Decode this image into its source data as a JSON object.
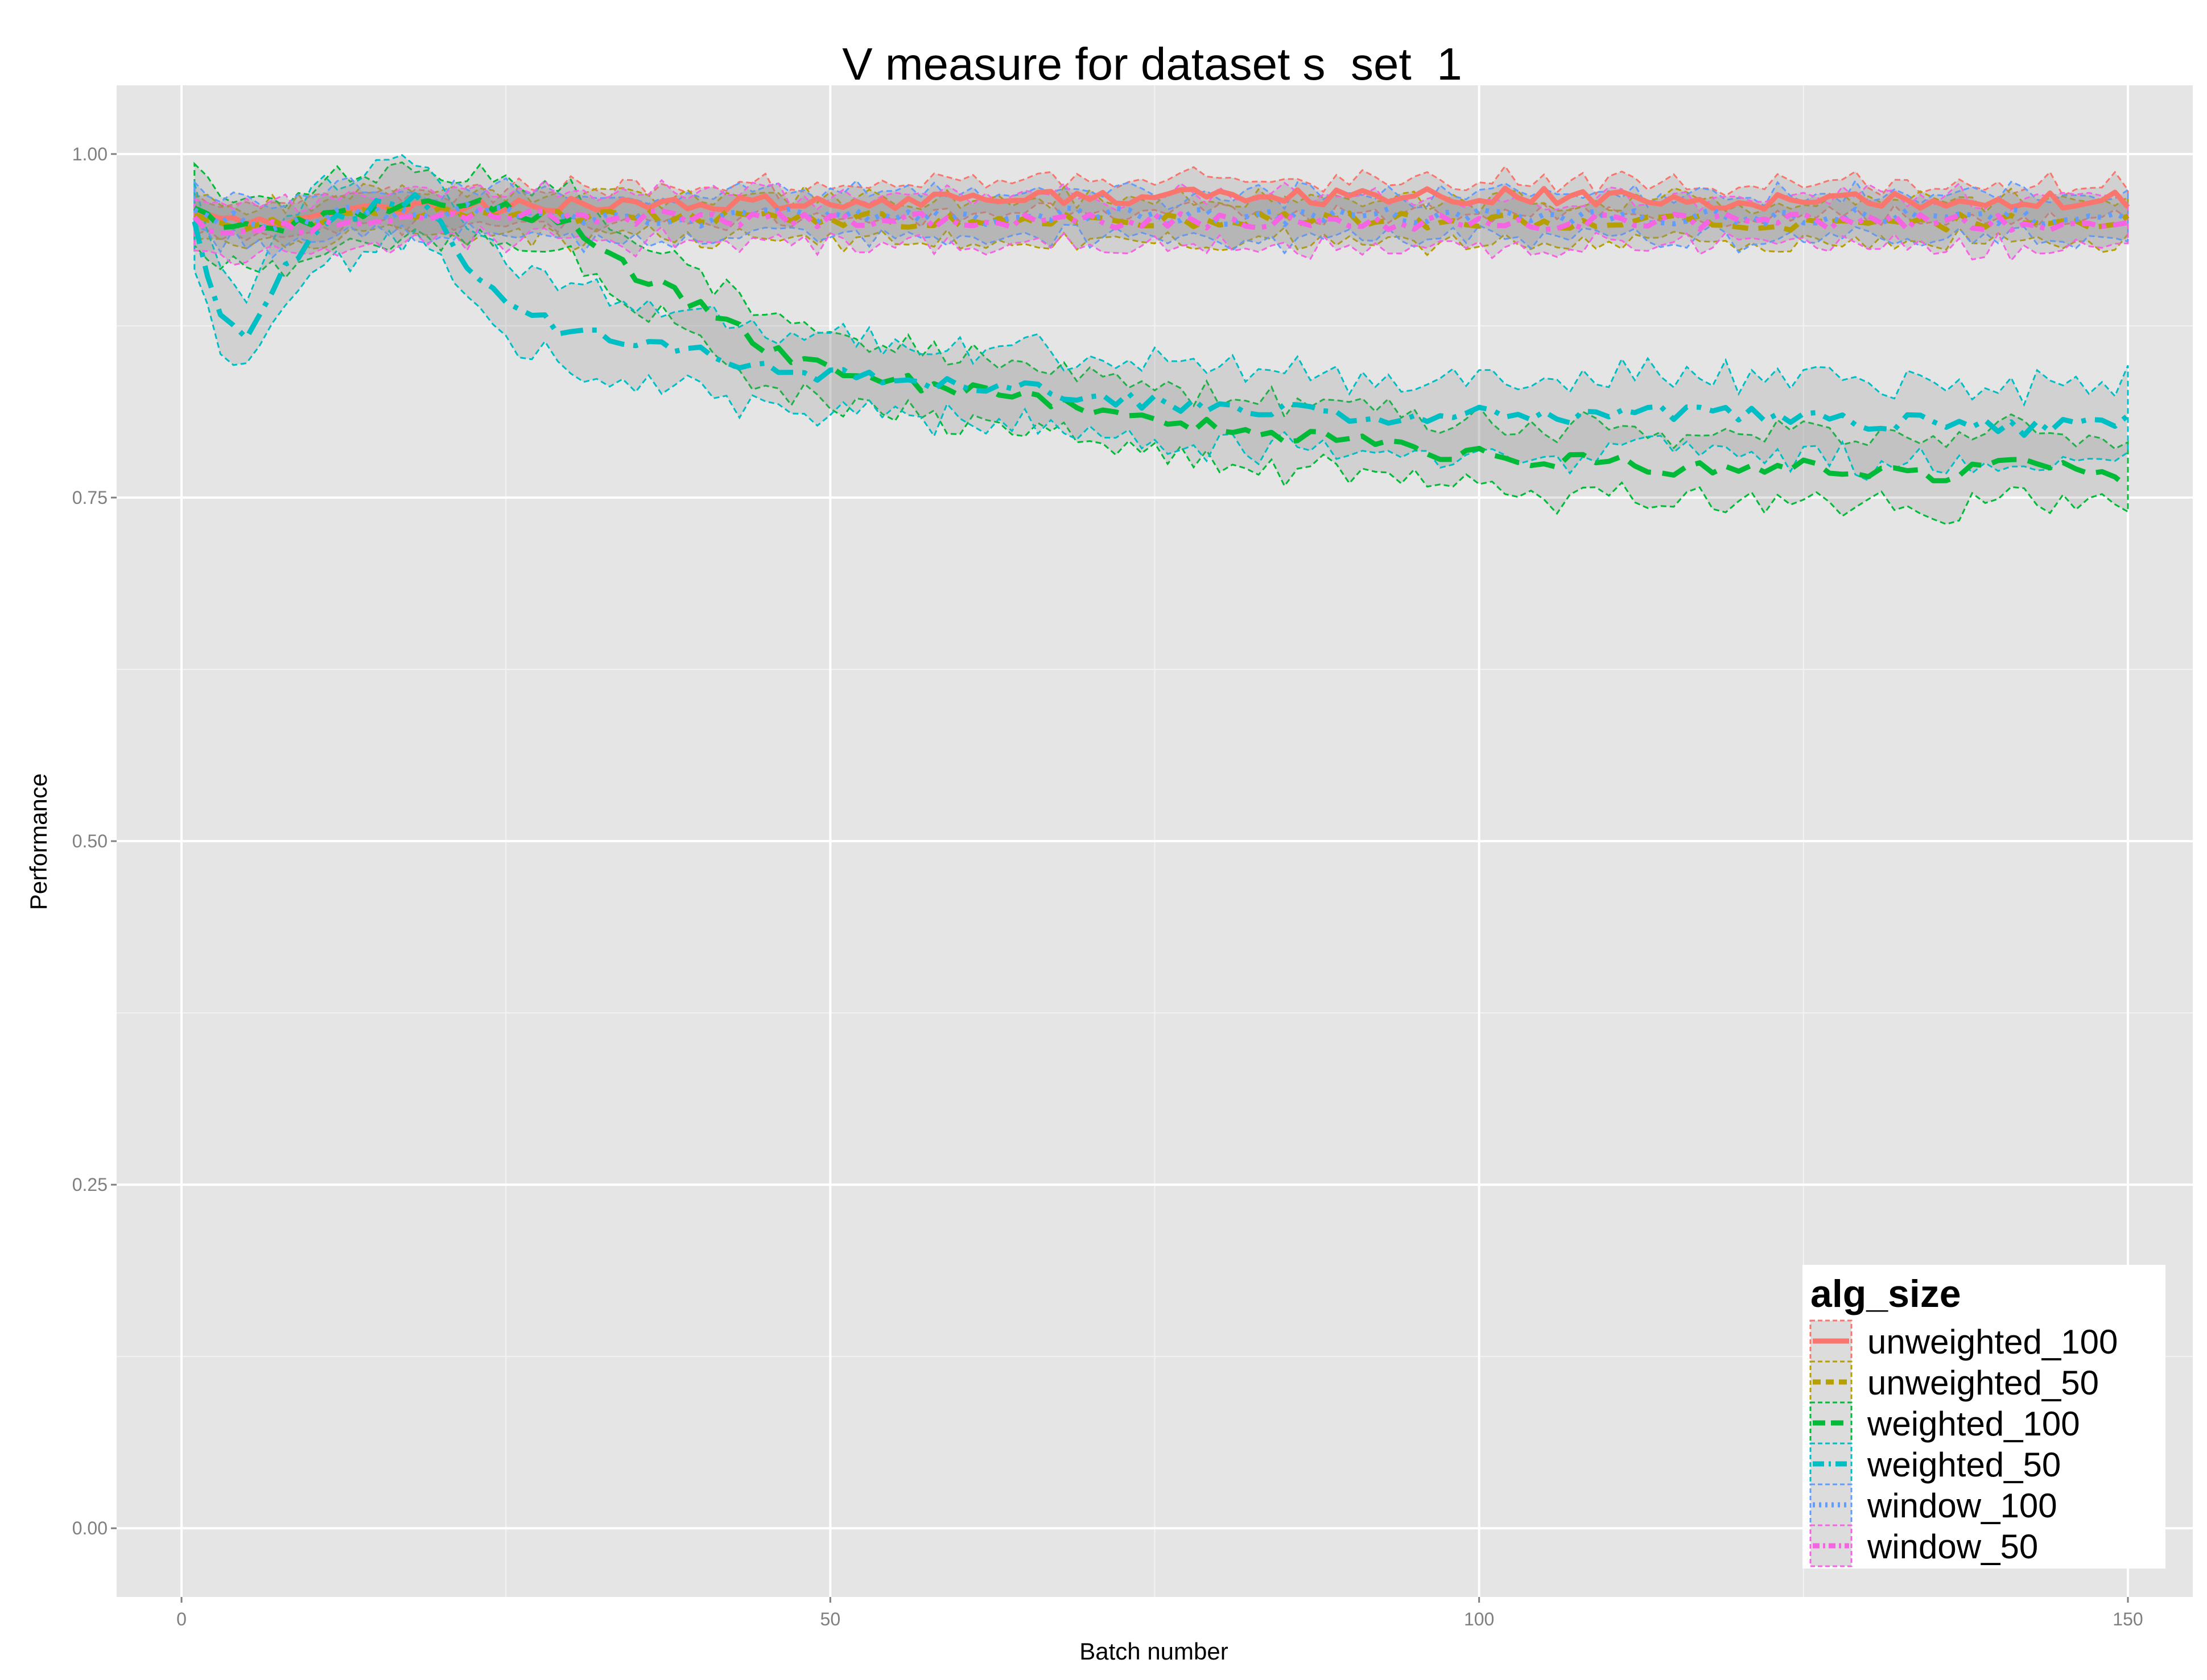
{
  "chart_data": {
    "type": "line",
    "title": "V measure for dataset s_set_1",
    "xlabel": "Batch number",
    "ylabel": "Performance",
    "xlim": [
      -5,
      155
    ],
    "ylim": [
      -0.05,
      1.05
    ],
    "xticks": [
      0,
      50,
      100,
      150
    ],
    "yticks": [
      0.0,
      0.25,
      0.5,
      0.75,
      1.0
    ],
    "xtick_labels": [
      "0",
      "50",
      "100",
      "150"
    ],
    "ytick_labels": [
      "0.00",
      "0.25",
      "0.50",
      "0.75",
      "1.00"
    ],
    "grid": true,
    "legend": {
      "title": "alg_size",
      "position": "bottom-right"
    },
    "band": "shaded ribbon around each series",
    "series": [
      {
        "name": "unweighted_100",
        "color": "#F8766D",
        "dash": "solid",
        "points": [
          [
            1,
            0.955
          ],
          [
            5,
            0.953
          ],
          [
            10,
            0.952
          ],
          [
            15,
            0.958
          ],
          [
            20,
            0.962
          ],
          [
            30,
            0.962
          ],
          [
            40,
            0.963
          ],
          [
            50,
            0.965
          ],
          [
            60,
            0.967
          ],
          [
            70,
            0.97
          ],
          [
            80,
            0.968
          ],
          [
            90,
            0.968
          ],
          [
            100,
            0.97
          ],
          [
            110,
            0.968
          ],
          [
            120,
            0.966
          ],
          [
            130,
            0.965
          ],
          [
            140,
            0.966
          ],
          [
            150,
            0.967
          ]
        ],
        "band_halfwidth": 0.012
      },
      {
        "name": "unweighted_50",
        "color": "#B79F00",
        "dash": "dashed",
        "points": [
          [
            1,
            0.955
          ],
          [
            5,
            0.948
          ],
          [
            10,
            0.95
          ],
          [
            15,
            0.956
          ],
          [
            20,
            0.96
          ],
          [
            30,
            0.955
          ],
          [
            40,
            0.953
          ],
          [
            50,
            0.952
          ],
          [
            60,
            0.951
          ],
          [
            70,
            0.952
          ],
          [
            80,
            0.951
          ],
          [
            90,
            0.952
          ],
          [
            100,
            0.951
          ],
          [
            110,
            0.951
          ],
          [
            120,
            0.95
          ],
          [
            130,
            0.95
          ],
          [
            140,
            0.951
          ],
          [
            150,
            0.95
          ]
        ],
        "band_halfwidth": 0.015
      },
      {
        "name": "weighted_100",
        "color": "#00BA38",
        "dash": "longdash",
        "points": [
          [
            1,
            0.955
          ],
          [
            5,
            0.945
          ],
          [
            10,
            0.95
          ],
          [
            15,
            0.958
          ],
          [
            20,
            0.962
          ],
          [
            25,
            0.962
          ],
          [
            30,
            0.95
          ],
          [
            35,
            0.91
          ],
          [
            40,
            0.89
          ],
          [
            45,
            0.86
          ],
          [
            50,
            0.845
          ],
          [
            55,
            0.835
          ],
          [
            60,
            0.83
          ],
          [
            65,
            0.825
          ],
          [
            70,
            0.815
          ],
          [
            75,
            0.81
          ],
          [
            80,
            0.8
          ],
          [
            85,
            0.795
          ],
          [
            90,
            0.79
          ],
          [
            95,
            0.785
          ],
          [
            100,
            0.78
          ],
          [
            105,
            0.778
          ],
          [
            110,
            0.775
          ],
          [
            115,
            0.77
          ],
          [
            120,
            0.772
          ],
          [
            125,
            0.775
          ],
          [
            130,
            0.77
          ],
          [
            135,
            0.765
          ],
          [
            140,
            0.775
          ],
          [
            145,
            0.77
          ],
          [
            150,
            0.76
          ]
        ],
        "band_halfwidth": 0.025
      },
      {
        "name": "weighted_50",
        "color": "#00BFC4",
        "dash": "dashdot",
        "points": [
          [
            1,
            0.95
          ],
          [
            3,
            0.88
          ],
          [
            5,
            0.865
          ],
          [
            7,
            0.9
          ],
          [
            10,
            0.945
          ],
          [
            15,
            0.962
          ],
          [
            18,
            0.965
          ],
          [
            20,
            0.945
          ],
          [
            23,
            0.91
          ],
          [
            26,
            0.89
          ],
          [
            30,
            0.87
          ],
          [
            35,
            0.86
          ],
          [
            40,
            0.855
          ],
          [
            45,
            0.845
          ],
          [
            50,
            0.84
          ],
          [
            55,
            0.835
          ],
          [
            60,
            0.832
          ],
          [
            65,
            0.83
          ],
          [
            70,
            0.825
          ],
          [
            75,
            0.82
          ],
          [
            80,
            0.815
          ],
          [
            85,
            0.812
          ],
          [
            90,
            0.81
          ],
          [
            95,
            0.81
          ],
          [
            100,
            0.81
          ],
          [
            105,
            0.81
          ],
          [
            110,
            0.81
          ],
          [
            115,
            0.812
          ],
          [
            120,
            0.81
          ],
          [
            125,
            0.808
          ],
          [
            130,
            0.805
          ],
          [
            135,
            0.805
          ],
          [
            140,
            0.8
          ],
          [
            145,
            0.803
          ],
          [
            150,
            0.805
          ]
        ],
        "band_halfwidth": 0.028
      },
      {
        "name": "window_100",
        "color": "#619CFF",
        "dash": "dotted",
        "points": [
          [
            1,
            0.955
          ],
          [
            5,
            0.95
          ],
          [
            10,
            0.952
          ],
          [
            15,
            0.958
          ],
          [
            20,
            0.958
          ],
          [
            30,
            0.955
          ],
          [
            40,
            0.953
          ],
          [
            50,
            0.955
          ],
          [
            60,
            0.954
          ],
          [
            70,
            0.955
          ],
          [
            80,
            0.954
          ],
          [
            90,
            0.955
          ],
          [
            100,
            0.955
          ],
          [
            110,
            0.954
          ],
          [
            120,
            0.955
          ],
          [
            130,
            0.954
          ],
          [
            140,
            0.955
          ],
          [
            150,
            0.952
          ]
        ],
        "band_halfwidth": 0.016
      },
      {
        "name": "window_50",
        "color": "#F564E3",
        "dash": "twodash",
        "points": [
          [
            1,
            0.95
          ],
          [
            5,
            0.945
          ],
          [
            10,
            0.948
          ],
          [
            15,
            0.955
          ],
          [
            20,
            0.958
          ],
          [
            30,
            0.955
          ],
          [
            40,
            0.953
          ],
          [
            50,
            0.953
          ],
          [
            60,
            0.952
          ],
          [
            70,
            0.952
          ],
          [
            80,
            0.951
          ],
          [
            90,
            0.951
          ],
          [
            100,
            0.951
          ],
          [
            110,
            0.95
          ],
          [
            120,
            0.951
          ],
          [
            130,
            0.95
          ],
          [
            140,
            0.95
          ],
          [
            150,
            0.948
          ]
        ],
        "band_halfwidth": 0.018
      }
    ]
  }
}
